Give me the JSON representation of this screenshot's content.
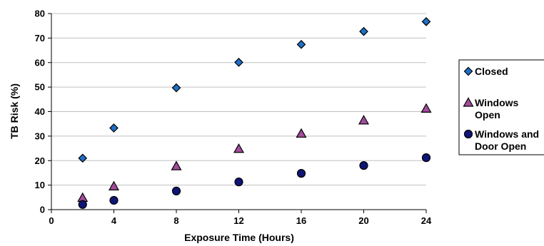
{
  "chart_data": {
    "type": "scatter",
    "title": "",
    "xlabel": "Exposure Time (Hours)",
    "ylabel": "TB Risk (%)",
    "xlim": [
      0,
      24
    ],
    "ylim": [
      0,
      80
    ],
    "xticks": [
      0,
      4,
      8,
      12,
      16,
      20,
      24
    ],
    "yticks": [
      0,
      10,
      20,
      30,
      40,
      50,
      60,
      70,
      80
    ],
    "grid": true,
    "legend_position": "right",
    "series": [
      {
        "name": "Closed",
        "label_lines": [
          "Closed"
        ],
        "marker": "diamond",
        "color": "#1f6fc5",
        "x": [
          2,
          4,
          8,
          12,
          16,
          20,
          24
        ],
        "y": [
          21,
          33.3,
          49.7,
          60.1,
          67.4,
          72.7,
          76.7
        ]
      },
      {
        "name": "Windows Open",
        "label_lines": [
          "Windows",
          "Open"
        ],
        "marker": "triangle",
        "color": "#a24c9c",
        "x": [
          2,
          4,
          8,
          12,
          16,
          20,
          24
        ],
        "y": [
          4.8,
          9.5,
          17.7,
          24.8,
          31,
          36.4,
          41.2
        ]
      },
      {
        "name": "Windows and Door Open",
        "label_lines": [
          "Windows and",
          "Door Open"
        ],
        "marker": "circle",
        "color": "#0f1575",
        "x": [
          2,
          4,
          8,
          12,
          16,
          20,
          24
        ],
        "y": [
          2.1,
          3.8,
          7.6,
          11.3,
          14.8,
          18,
          21.2
        ]
      }
    ]
  }
}
